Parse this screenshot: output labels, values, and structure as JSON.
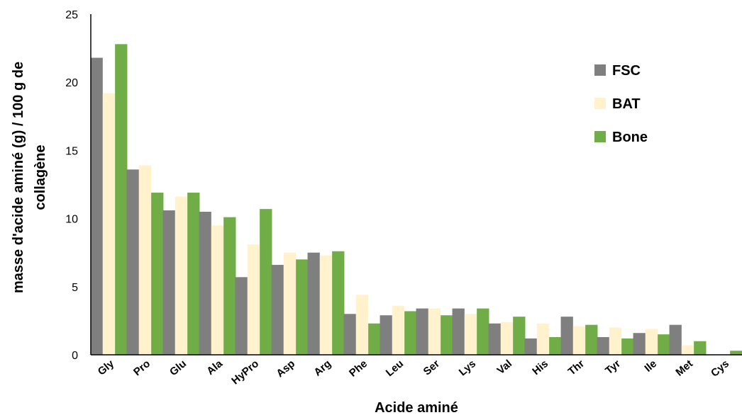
{
  "chart_data": {
    "type": "bar",
    "title": "",
    "xlabel": "Acide aminé",
    "ylabel_line1": "masse d'acide aminé (g) / 100 g de",
    "ylabel_line2": "collagène",
    "ylim": [
      0,
      25
    ],
    "yticks": [
      "0",
      "5",
      "10",
      "15",
      "20",
      "25"
    ],
    "categories": [
      "Gly",
      "Pro",
      "Glu",
      "Ala",
      "HyPro",
      "Asp",
      "Arg",
      "Phe",
      "Leu",
      "Ser",
      "Lys",
      "Val",
      "His",
      "Thr",
      "Tyr",
      "Ile",
      "Met",
      "Cys"
    ],
    "series": [
      {
        "name": "FSC",
        "color": "#7f7f7f",
        "values": [
          21.8,
          13.6,
          10.6,
          10.5,
          5.7,
          6.6,
          7.5,
          3.0,
          2.9,
          3.4,
          3.4,
          2.3,
          1.2,
          2.8,
          1.3,
          1.6,
          2.2,
          0.0
        ]
      },
      {
        "name": "BAT",
        "color": "#fff2cc",
        "values": [
          19.2,
          13.9,
          11.6,
          9.5,
          8.1,
          7.5,
          7.3,
          4.4,
          3.6,
          3.4,
          3.0,
          2.4,
          2.3,
          2.1,
          2.0,
          1.9,
          0.7,
          0.0
        ]
      },
      {
        "name": "Bone",
        "color": "#70ad47",
        "values": [
          22.8,
          11.9,
          11.9,
          10.1,
          10.7,
          7.0,
          7.6,
          2.3,
          3.2,
          2.9,
          3.4,
          2.8,
          1.3,
          2.2,
          1.2,
          1.5,
          1.0,
          0.3
        ]
      }
    ],
    "legend_position": "top-right",
    "grid": false
  }
}
